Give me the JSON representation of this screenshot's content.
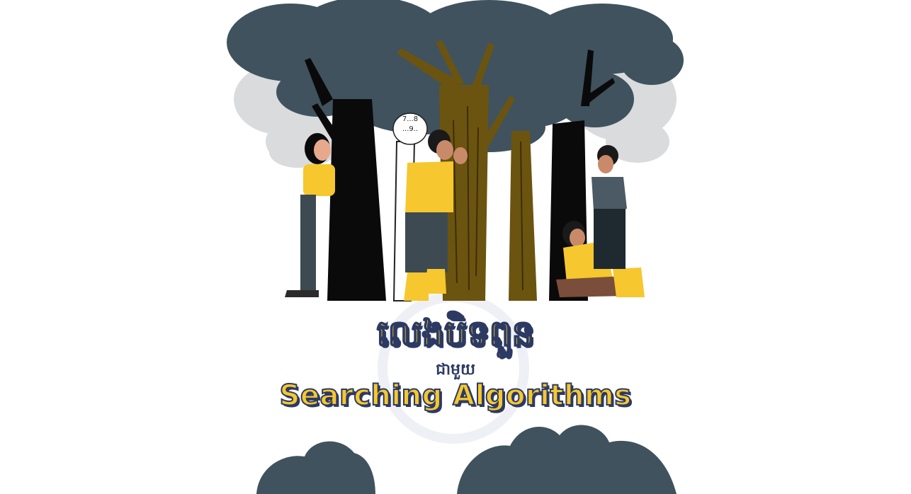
{
  "illustration": {
    "name": "hide-and-seek-forest",
    "speech_bubble": {
      "line1": "7...8",
      "line2": "...9.."
    },
    "colors": {
      "foliage_dark": "#3F525E",
      "foliage_light": "#D9DBDD",
      "trunk_black": "#0A0A0A",
      "trunk_brown": "#6B5410",
      "yellow": "#F6C72E",
      "pants": "#3D4A52",
      "skin": "#C98A6A"
    }
  },
  "title": {
    "khmer_main": "លេងបិទពួន",
    "khmer_sub": "ជាមួយ",
    "english": "Searching Algorithms"
  },
  "colors": {
    "title_fill": "#F6C72E",
    "title_outline": "#2C3A63"
  }
}
